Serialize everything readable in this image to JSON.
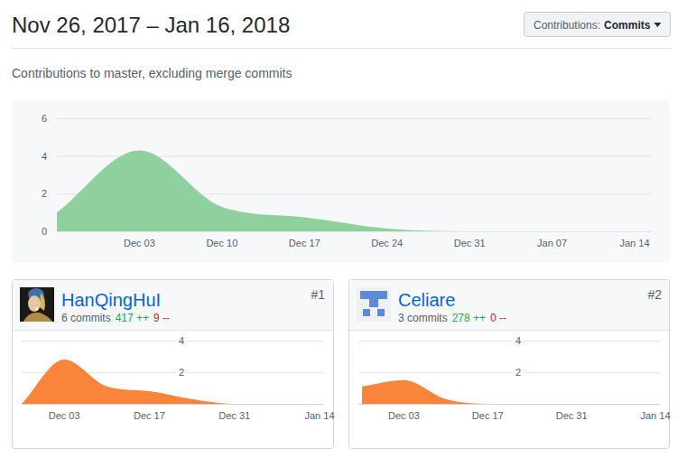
{
  "header": {
    "title": "Nov 26, 2017 – Jan 16, 2018",
    "button_label": "Contributions:",
    "button_value": "Commits",
    "subtitle": "Contributions to master, excluding merge commits"
  },
  "chart_data": [
    {
      "type": "area",
      "categories": [
        null,
        "Dec 03",
        "Dec 10",
        "Dec 17",
        "Dec 24",
        "Dec 31",
        "Jan 07",
        "Jan 14"
      ],
      "values": [
        1,
        4.3,
        1.3,
        0.75,
        0.15,
        0,
        0,
        0
      ],
      "color": "#8fd19e",
      "ylim": [
        0,
        6
      ],
      "yticks": [
        0,
        2,
        4,
        6
      ],
      "grid": true
    },
    {
      "type": "area",
      "categories": [
        null,
        "Dec 03",
        null,
        "Dec 17",
        null,
        "Dec 31",
        null,
        "Jan 14"
      ],
      "values": [
        0,
        2.8,
        1.1,
        0.8,
        0.3,
        0,
        0,
        0
      ],
      "color": "#f9843a",
      "ylim": [
        0,
        4
      ],
      "yticks": [
        2,
        4
      ],
      "grid": true
    },
    {
      "type": "area",
      "categories": [
        null,
        "Dec 03",
        null,
        "Dec 17",
        null,
        "Dec 31",
        null,
        "Jan 14"
      ],
      "values": [
        1.1,
        1.5,
        0.3,
        0,
        0,
        0,
        0,
        0
      ],
      "color": "#f9843a",
      "ylim": [
        0,
        4
      ],
      "yticks": [
        2,
        4
      ],
      "grid": true
    }
  ],
  "contributors": [
    {
      "rank": "#1",
      "name": "HanQingHuI",
      "commits": "6 commits",
      "additions": "417 ++",
      "deletions": "9 --"
    },
    {
      "rank": "#2",
      "name": "Celiare",
      "commits": "3 commits",
      "additions": "278 ++",
      "deletions": "0 --"
    }
  ]
}
